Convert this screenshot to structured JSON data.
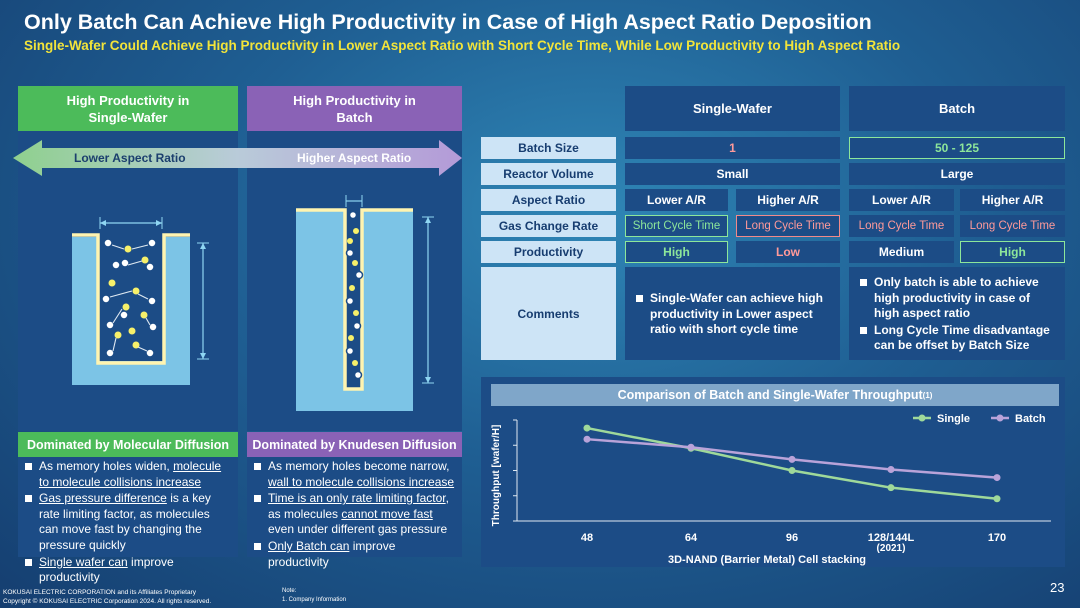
{
  "title": "Only Batch Can Achieve High Productivity in Case of High Aspect Ratio Deposition",
  "subtitle": "Single-Wafer Could Achieve High Productivity in Lower Aspect Ratio with Short Cycle Time, While Low Productivity to High Aspect Ratio",
  "left_panel": {
    "head": "High Productivity in\nSingle-Wafer",
    "arrow_label": "Lower Aspect Ratio",
    "foot_head": "Dominated by Molecular Diffusion",
    "bullets": [
      {
        "parts": [
          "As memory holes widen, ",
          "molecule to molecule collisions increase",
          ""
        ]
      },
      {
        "parts": [
          "",
          "Gas pressure difference",
          " is a key rate limiting factor, as molecules can move fast by changing the pressure quickly"
        ]
      },
      {
        "parts": [
          "",
          "Single wafer can",
          " improve productivity"
        ]
      }
    ]
  },
  "right_panel": {
    "head": "High Productivity in\nBatch",
    "arrow_label": "Higher Aspect Ratio",
    "foot_head": "Dominated by Knudesen Diffusion",
    "bullets": [
      {
        "parts": [
          "As memory holes become narrow, ",
          "wall to molecule collisions increase",
          ""
        ]
      },
      {
        "parts": [
          "",
          "Time is an only rate limiting factor",
          ", as molecules ",
          "cannot move fast",
          " even under different gas pressure"
        ]
      },
      {
        "parts": [
          "",
          "Only Batch can",
          " improve productivity"
        ]
      }
    ]
  },
  "table": {
    "col_single": "Single-Wafer",
    "col_batch": "Batch",
    "rows": {
      "batch_size": {
        "label": "Batch Size",
        "single": "1",
        "batch": "50 - 125"
      },
      "reactor_volume": {
        "label": "Reactor Volume",
        "single": "Small",
        "batch": "Large"
      },
      "aspect_ratio": {
        "label": "Aspect Ratio",
        "s_low": "Lower A/R",
        "s_high": "Higher A/R",
        "b_low": "Lower A/R",
        "b_high": "Higher A/R"
      },
      "gas_change_rate": {
        "label": "Gas Change Rate",
        "s_low": "Short Cycle Time",
        "s_high": "Long Cycle Time",
        "b_low": "Long Cycle Time",
        "b_high": "Long Cycle Time"
      },
      "productivity": {
        "label": "Productivity",
        "s_low": "High",
        "s_high": "Low",
        "b_low": "Medium",
        "b_high": "High"
      },
      "comments": {
        "label": "Comments",
        "single": [
          "Single-Wafer can achieve high productivity in Lower aspect ratio with short cycle time"
        ],
        "batch": [
          "Only batch is able to achieve high productivity in case of high aspect ratio",
          "Long Cycle Time disadvantage can be offset by Batch Size"
        ]
      }
    }
  },
  "chart_data": {
    "type": "line",
    "title": "Comparison of Batch and Single-Wafer Throughput",
    "title_sup": "(1)",
    "xlabel": "3D-NAND (Barrier Metal) Cell stacking",
    "ylabel": "Throughput [wafer/H]",
    "categories": [
      "48",
      "64",
      "96",
      "128/144L\n(2021)",
      "170"
    ],
    "ylim": [
      0,
      1
    ],
    "grid": false,
    "legend": "top-right",
    "series": [
      {
        "name": "Single",
        "color": "#9fd99a",
        "values": [
          0.92,
          0.72,
          0.5,
          0.33,
          0.22
        ]
      },
      {
        "name": "Batch",
        "color": "#b9a3d9",
        "values": [
          0.81,
          0.73,
          0.61,
          0.51,
          0.43
        ]
      }
    ]
  },
  "footer": {
    "line1": "KOKUSAI ELECTRIC CORPORATION and its Affiliates Proprietary",
    "line2": "Copyright © KOKUSAI ELECTRIC Corporation 2024. All rights reserved.",
    "note_title": "Note:",
    "note_1": "1. Company Information",
    "page": "23"
  }
}
